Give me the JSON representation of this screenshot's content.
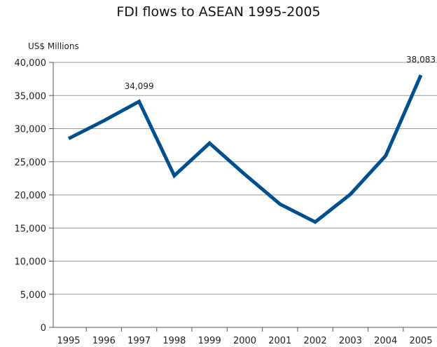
{
  "chart_data": {
    "type": "line",
    "title": "FDI flows to ASEAN 1995-2005",
    "ylabel": "US$ Millions",
    "xlabel": "",
    "categories": [
      "1995",
      "1996",
      "1997",
      "1998",
      "1999",
      "2000",
      "2001",
      "2002",
      "2003",
      "2004",
      "2005"
    ],
    "series": [
      {
        "values": [
          28500,
          31200,
          34099,
          22900,
          27800,
          23100,
          18600,
          15900,
          20100,
          25900,
          38083
        ]
      }
    ],
    "y_ticks": [
      "0",
      "5,000",
      "10,000",
      "15,000",
      "20,000",
      "25,000",
      "30,000",
      "35,000",
      "40,000"
    ],
    "y_tick_values": [
      0,
      5000,
      10000,
      15000,
      20000,
      25000,
      30000,
      35000,
      40000
    ],
    "ylim": [
      0,
      40000
    ],
    "grid": true,
    "line_color": "#00508f",
    "annotations": [
      {
        "category": "1997",
        "value": 34099,
        "text": "34,099"
      },
      {
        "category": "2005",
        "value": 38083,
        "text": "38,083"
      }
    ]
  }
}
